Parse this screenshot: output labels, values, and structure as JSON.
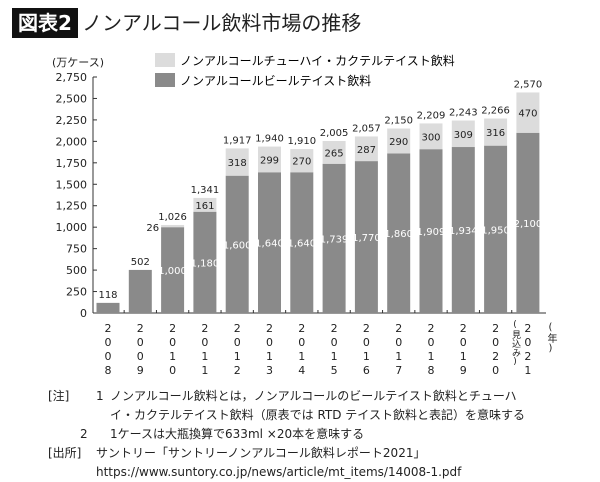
{
  "header": {
    "tag": "図表2",
    "title": "ノンアルコール飲料市場の推移"
  },
  "chart_data": {
    "type": "bar",
    "stacked": true,
    "ylabel": "(万ケース)",
    "xunit": "(年)",
    "ylim": [
      0,
      2750
    ],
    "yticks": [
      "0",
      "250",
      "500",
      "750",
      "1,000",
      "1,250",
      "1,500",
      "1,750",
      "2,000",
      "2,250",
      "2,500",
      "2,750"
    ],
    "categories": [
      "2008",
      "2009",
      "2010",
      "2011",
      "2012",
      "2013",
      "2014",
      "2015",
      "2016",
      "2017",
      "2018",
      "2019",
      "2020",
      "2021"
    ],
    "category_notes": {
      "2021": "(見込み)"
    },
    "series": [
      {
        "name": "ノンアルコールビールテイスト飲料",
        "color": "#8a8a8a",
        "values": [
          118,
          502,
          1000,
          1180,
          1600,
          1640,
          1640,
          1739,
          1770,
          1860,
          1909,
          1934,
          1950,
          2100
        ]
      },
      {
        "name": "ノンアルコールチューハイ・カクテルテイスト飲料",
        "color": "#dcdcdc",
        "values": [
          0,
          0,
          26,
          161,
          318,
          299,
          270,
          265,
          287,
          290,
          300,
          309,
          316,
          470
        ]
      }
    ],
    "totals": [
      118,
      502,
      1026,
      1341,
      1917,
      1940,
      1910,
      2005,
      2057,
      2150,
      2209,
      2243,
      2266,
      2570
    ],
    "legend": "top-left"
  },
  "notes": {
    "note_tag": "[注]",
    "note1_num": "1",
    "note1_line1": "ノンアルコール飲料とは，ノンアルコールのビールテイスト飲料とチューハ",
    "note1_line2": "イ・カクテルテイスト飲料（原表では RTD テイスト飲料と表記）を意味する",
    "note2_num": "2",
    "note2": "1ケースは大瓶換算で633ml ×20本を意味する",
    "source_tag": "[出所]",
    "source_line1": "サントリー「サントリーノンアルコール飲料レポート2021」",
    "source_line2": "https://www.suntory.co.jp/news/article/mt_items/14008-1.pdf"
  }
}
